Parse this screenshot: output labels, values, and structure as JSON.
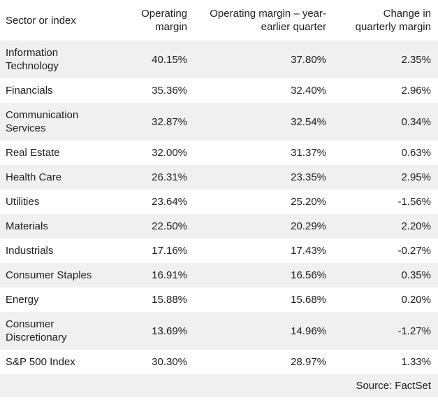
{
  "colors": {
    "background": "#ffffff",
    "stripe": "#f0f0f0",
    "text": "#1d1d1d"
  },
  "chart_data": {
    "type": "table",
    "columns": [
      "Sector or index",
      "Operating margin",
      "Operating margin – year-earlier quarter",
      "Change in quarterly margin"
    ],
    "rows": [
      [
        "Information Technology",
        "40.15%",
        "37.80%",
        "2.35%"
      ],
      [
        "Financials",
        "35.36%",
        "32.40%",
        "2.96%"
      ],
      [
        "Communication Services",
        "32.87%",
        "32.54%",
        "0.34%"
      ],
      [
        "Real Estate",
        "32.00%",
        "31.37%",
        "0.63%"
      ],
      [
        "Health Care",
        "26.31%",
        "23.35%",
        "2.95%"
      ],
      [
        "Utilities",
        "23.64%",
        "25.20%",
        "-1.56%"
      ],
      [
        "Materials",
        "22.50%",
        "20.29%",
        "2.20%"
      ],
      [
        "Industrials",
        "17.16%",
        "17.43%",
        "-0.27%"
      ],
      [
        "Consumer Staples",
        "16.91%",
        "16.56%",
        "0.35%"
      ],
      [
        "Energy",
        "15.88%",
        "15.68%",
        "0.20%"
      ],
      [
        "Consumer Discretionary",
        "13.69%",
        "14.96%",
        "-1.27%"
      ],
      [
        "S&P 500 Index",
        "30.30%",
        "28.97%",
        "1.33%"
      ]
    ],
    "numeric_values": {
      "operating_margin": [
        40.15,
        35.36,
        32.87,
        32.0,
        26.31,
        23.64,
        22.5,
        17.16,
        16.91,
        15.88,
        13.69,
        30.3
      ],
      "operating_margin_year_earlier": [
        37.8,
        32.4,
        32.54,
        31.37,
        23.35,
        25.2,
        20.29,
        17.43,
        16.56,
        15.68,
        14.96,
        28.97
      ],
      "change_in_quarterly_margin": [
        2.35,
        2.96,
        0.34,
        0.63,
        2.95,
        -1.56,
        2.2,
        -0.27,
        0.35,
        0.2,
        -1.27,
        1.33
      ]
    },
    "source": "Source: FactSet"
  }
}
